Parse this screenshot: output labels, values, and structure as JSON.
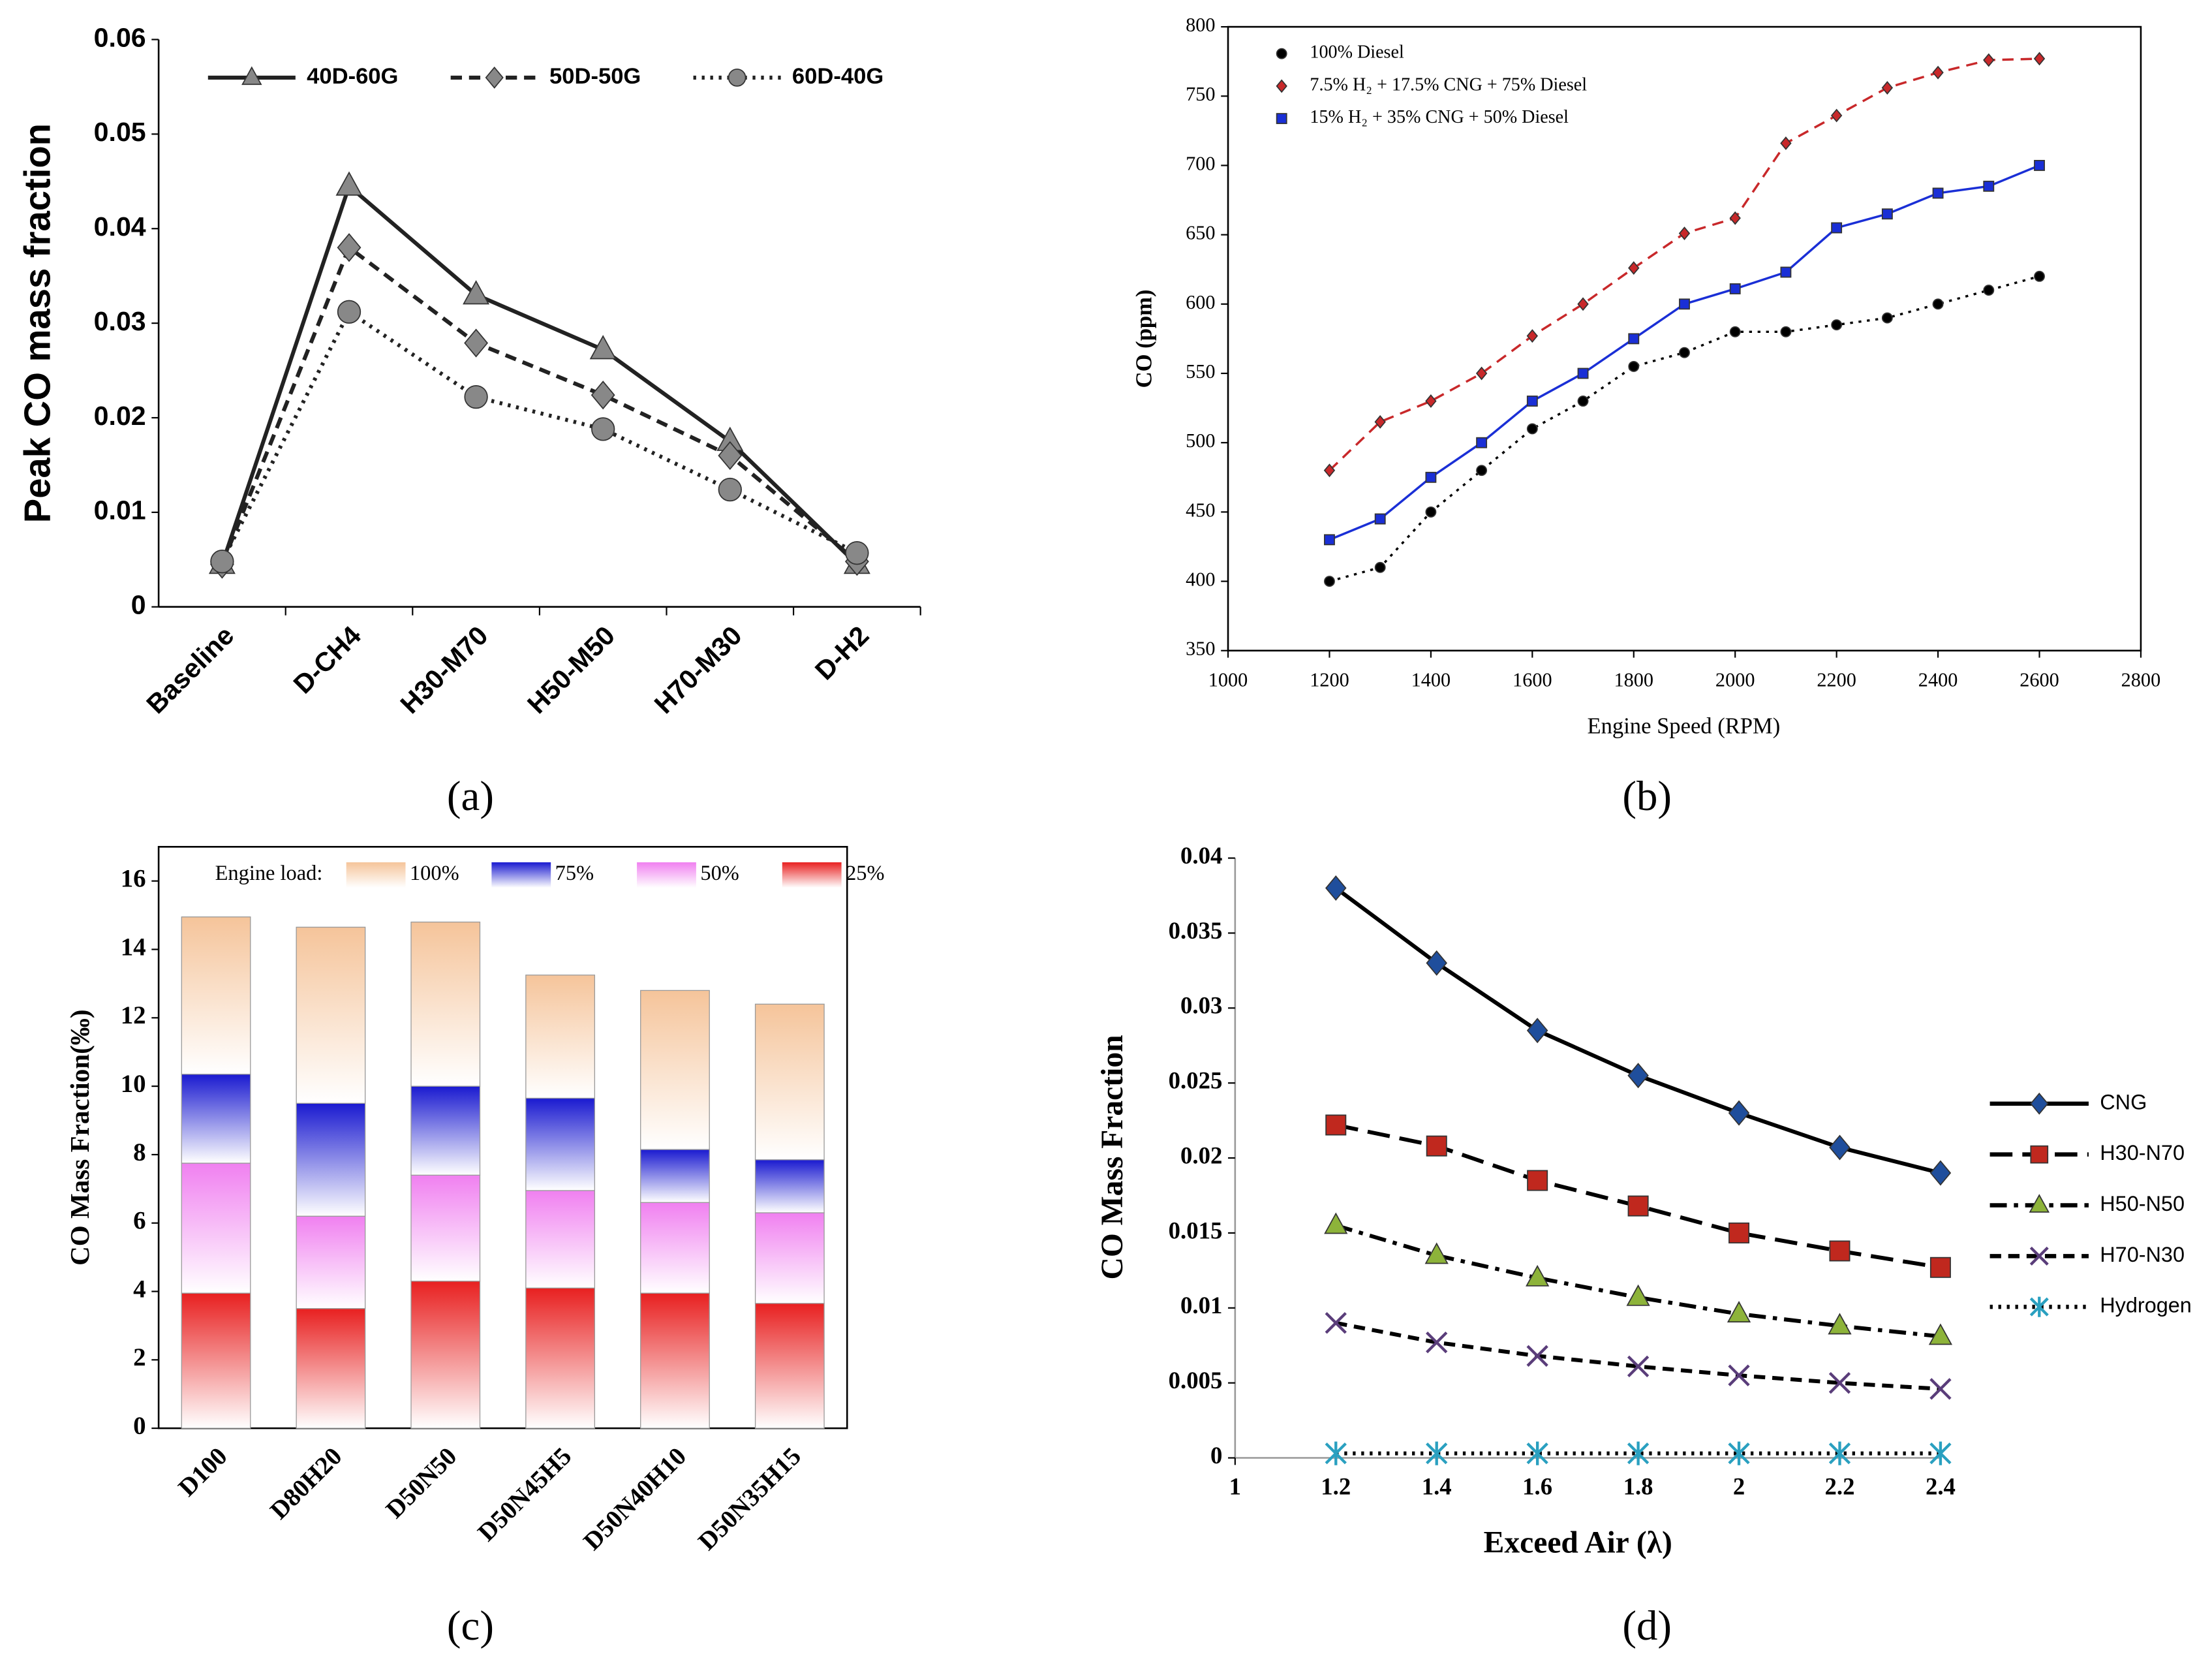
{
  "chart_data": [
    {
      "type": "line",
      "panel_label": "(a)",
      "y_label": "Peak CO mass fraction",
      "categories": [
        "Baseline",
        "D-CH4",
        "H30-M70",
        "H50-M50",
        "H70-M30",
        "D-H2"
      ],
      "ylim": [
        0,
        0.06
      ],
      "yticks": [
        0,
        0.01,
        0.02,
        0.03,
        0.04,
        0.05,
        0.06
      ],
      "legend": "top",
      "series": [
        {
          "name": "40D-60G",
          "color": "#222222",
          "linestyle": "solid",
          "marker": "triangle",
          "marker_color": "#888888",
          "values": [
            0.0045,
            0.0445,
            0.033,
            0.0272,
            0.0175,
            0.0045
          ]
        },
        {
          "name": "50D-50G",
          "color": "#222222",
          "linestyle": "dashed",
          "marker": "diamond",
          "marker_color": "#888888",
          "values": [
            0.0045,
            0.038,
            0.0279,
            0.0224,
            0.016,
            0.0048
          ]
        },
        {
          "name": "60D-40G",
          "color": "#222222",
          "linestyle": "dotted",
          "marker": "circle",
          "marker_color": "#888888",
          "values": [
            0.0048,
            0.0312,
            0.0222,
            0.0188,
            0.0124,
            0.0057
          ]
        }
      ]
    },
    {
      "type": "line",
      "panel_label": "(b)",
      "x_label": "Engine Speed (RPM)",
      "y_label": "CO (ppm)",
      "x": [
        1200,
        1300,
        1400,
        1500,
        1600,
        1700,
        1800,
        1900,
        2000,
        2100,
        2200,
        2300,
        2400,
        2500,
        2600
      ],
      "xlim": [
        1000,
        2800
      ],
      "xticks": [
        1000,
        1200,
        1400,
        1600,
        1800,
        2000,
        2200,
        2400,
        2600,
        2800
      ],
      "ylim": [
        350,
        800
      ],
      "yticks": [
        350,
        400,
        450,
        500,
        550,
        600,
        650,
        700,
        750,
        800
      ],
      "legend": "upper left",
      "series": [
        {
          "name": "100% Diesel",
          "color": "#000000",
          "linestyle": "dotted",
          "marker": "circle",
          "marker_color": "#000000",
          "values": [
            400,
            410,
            450,
            480,
            510,
            530,
            555,
            565,
            580,
            580,
            585,
            590,
            600,
            610,
            620
          ]
        },
        {
          "name": "7.5% H₂ + 17.5% CNG + 75% Diesel",
          "color": "#c8282a",
          "linestyle": "dashed",
          "marker": "diamond",
          "marker_color": "#c8282a",
          "values": [
            480,
            515,
            530,
            550,
            577,
            600,
            626,
            651,
            662,
            716,
            736,
            756,
            767,
            776,
            777
          ]
        },
        {
          "name": "15% H₂ + 35% CNG + 50% Diesel",
          "color": "#1a2fd6",
          "linestyle": "solid",
          "marker": "square",
          "marker_color": "#1a2fd6",
          "values": [
            430,
            445,
            475,
            500,
            530,
            550,
            575,
            600,
            611,
            623,
            655,
            665,
            680,
            685,
            700
          ]
        }
      ]
    },
    {
      "type": "stacked_bar",
      "panel_label": "(c)",
      "y_label": "CO Mass Fraction(‰)",
      "legend_title": "Engine load:",
      "categories": [
        "D100",
        "D80H20",
        "D50N50",
        "D50N45H5",
        "D50N40H10",
        "D50N35H15"
      ],
      "ylim": [
        0,
        17
      ],
      "yticks": [
        0,
        2,
        4,
        6,
        8,
        10,
        12,
        14,
        16
      ],
      "legend": "top",
      "series": [
        {
          "name": "25%",
          "color": "#e82020",
          "values": [
            3.95,
            3.5,
            4.3,
            4.1,
            3.95,
            3.65
          ]
        },
        {
          "name": "50%",
          "color": "#f080f0",
          "values": [
            3.8,
            2.7,
            3.1,
            2.85,
            2.65,
            2.65
          ]
        },
        {
          "name": "75%",
          "color": "#1a1ad0",
          "values": [
            2.6,
            3.3,
            2.6,
            2.7,
            1.55,
            1.55
          ]
        },
        {
          "name": "100%",
          "color": "#f5c49a",
          "values": [
            4.6,
            5.15,
            4.8,
            3.6,
            4.65,
            4.55
          ]
        }
      ]
    },
    {
      "type": "line",
      "panel_label": "(d)",
      "x_label": "Exceed Air (λ)",
      "y_label": "CO Mass Fraction",
      "x": [
        1.2,
        1.4,
        1.6,
        1.8,
        2,
        2.2,
        2.4
      ],
      "xlim": [
        1,
        2.4
      ],
      "xticks": [
        1,
        1.2,
        1.4,
        1.6,
        1.8,
        2,
        2.2,
        2.4
      ],
      "ylim": [
        0,
        0.04
      ],
      "yticks": [
        0,
        0.005,
        0.01,
        0.015,
        0.02,
        0.025,
        0.03,
        0.035,
        0.04
      ],
      "legend": "right",
      "series": [
        {
          "name": "CNG",
          "color": "#000000",
          "linestyle": "solid",
          "marker": "diamond",
          "marker_color": "#1f4e9c",
          "values": [
            0.038,
            0.033,
            0.0285,
            0.0255,
            0.023,
            0.0207,
            0.019
          ]
        },
        {
          "name": "H30-N70",
          "color": "#000000",
          "linestyle": "longdash",
          "marker": "square",
          "marker_color": "#c0281e",
          "values": [
            0.0222,
            0.0208,
            0.0185,
            0.0168,
            0.015,
            0.0138,
            0.0127
          ]
        },
        {
          "name": "H50-N50",
          "color": "#000000",
          "linestyle": "dashdot",
          "marker": "triangle",
          "marker_color": "#8db33a",
          "values": [
            0.0155,
            0.0135,
            0.012,
            0.0107,
            0.0096,
            0.0088,
            0.0081
          ]
        },
        {
          "name": "H70-N30",
          "color": "#000000",
          "linestyle": "dashed",
          "marker": "x",
          "marker_color": "#5a3d7a",
          "values": [
            0.009,
            0.0077,
            0.0068,
            0.0061,
            0.0055,
            0.005,
            0.0046
          ]
        },
        {
          "name": "Hydrogen",
          "color": "#000000",
          "linestyle": "dotted",
          "marker": "asterisk",
          "marker_color": "#2aa0c0",
          "values": [
            0.0003,
            0.0003,
            0.0003,
            0.0003,
            0.0003,
            0.0003,
            0.0003
          ]
        }
      ]
    }
  ]
}
